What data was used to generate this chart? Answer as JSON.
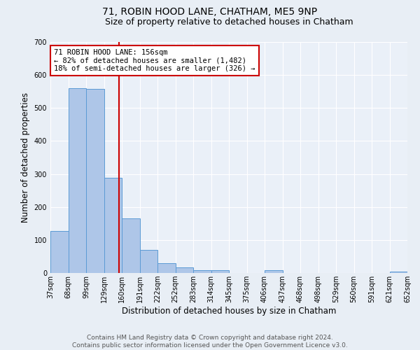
{
  "title": "71, ROBIN HOOD LANE, CHATHAM, ME5 9NP",
  "subtitle": "Size of property relative to detached houses in Chatham",
  "xlabel": "Distribution of detached houses by size in Chatham",
  "ylabel": "Number of detached properties",
  "bin_labels": [
    "37sqm",
    "68sqm",
    "99sqm",
    "129sqm",
    "160sqm",
    "191sqm",
    "222sqm",
    "252sqm",
    "283sqm",
    "314sqm",
    "345sqm",
    "375sqm",
    "406sqm",
    "437sqm",
    "468sqm",
    "498sqm",
    "529sqm",
    "560sqm",
    "591sqm",
    "621sqm",
    "652sqm"
  ],
  "bar_heights": [
    128,
    560,
    558,
    288,
    165,
    70,
    30,
    18,
    8,
    8,
    0,
    0,
    8,
    0,
    0,
    0,
    0,
    0,
    0,
    5
  ],
  "bar_color": "#aec6e8",
  "bar_edge_color": "#5b9bd5",
  "vline_x": 3.84,
  "vline_color": "#cc0000",
  "annotation_text": "71 ROBIN HOOD LANE: 156sqm\n← 82% of detached houses are smaller (1,482)\n18% of semi-detached houses are larger (326) →",
  "annotation_box_color": "#ffffff",
  "annotation_box_edge_color": "#cc0000",
  "ylim": [
    0,
    700
  ],
  "yticks": [
    0,
    100,
    200,
    300,
    400,
    500,
    600,
    700
  ],
  "bg_color": "#e8eef5",
  "plot_bg_color": "#eaf0f8",
  "grid_color": "#ffffff",
  "footer_text": "Contains HM Land Registry data © Crown copyright and database right 2024.\nContains public sector information licensed under the Open Government Licence v3.0.",
  "title_fontsize": 10,
  "subtitle_fontsize": 9,
  "xlabel_fontsize": 8.5,
  "ylabel_fontsize": 8.5,
  "tick_fontsize": 7,
  "annotation_fontsize": 7.5,
  "footer_fontsize": 6.5
}
